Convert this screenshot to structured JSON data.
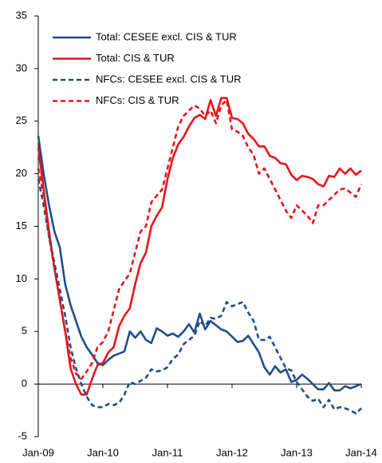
{
  "chart_data": {
    "type": "line",
    "categories": [
      "Jan-09",
      null,
      null,
      null,
      null,
      null,
      null,
      null,
      null,
      null,
      null,
      null,
      "Jan-10",
      null,
      null,
      null,
      null,
      null,
      null,
      null,
      null,
      null,
      null,
      null,
      "Jan-11",
      null,
      null,
      null,
      null,
      null,
      null,
      null,
      null,
      null,
      null,
      null,
      "Jan-12",
      null,
      null,
      null,
      null,
      null,
      null,
      null,
      null,
      null,
      null,
      null,
      "Jan-13",
      null,
      null,
      null,
      null,
      null,
      null,
      null,
      null,
      null,
      null,
      null,
      "Jan-14"
    ],
    "series": [
      {
        "name": "Total: CESEE excl. CIS & TUR",
        "color": "#1f4e8c",
        "line_style": "solid",
        "values": [
          23.6,
          20,
          17,
          14.5,
          13,
          9.5,
          7.5,
          6,
          4.5,
          3.5,
          2.8,
          2,
          1.8,
          2.3,
          2.7,
          2.9,
          3.1,
          5,
          4.4,
          5,
          4.2,
          3.9,
          5.3,
          5,
          4.6,
          4.8,
          4.5,
          5,
          5.7,
          4.9,
          6.7,
          5.2,
          6,
          5.6,
          5.2,
          5,
          4.5,
          4,
          4.1,
          4.6,
          3.8,
          3,
          1.6,
          0.9,
          1.7,
          1.1,
          1.4,
          0.2,
          0.4,
          0.9,
          0.5,
          0,
          -0.5,
          -0.5,
          0.1,
          -0.6,
          -0.6,
          -0.2,
          -0.4,
          -0.2,
          0
        ]
      },
      {
        "name": "Total: CIS & TUR",
        "color": "#e8141b",
        "line_style": "solid",
        "values": [
          22.5,
          18.5,
          14.5,
          11,
          8,
          5,
          1.5,
          0,
          -1,
          -1,
          0.5,
          1.8,
          2,
          3,
          3.5,
          5.5,
          6.5,
          7.2,
          9.5,
          11.5,
          12.5,
          15,
          16,
          16.8,
          19.5,
          21.5,
          22.8,
          23.5,
          24.5,
          25.3,
          25.6,
          25.2,
          27,
          25.5,
          27.2,
          27.2,
          25.3,
          25.2,
          24.8,
          23.8,
          23.3,
          22.6,
          22.6,
          21.7,
          21.5,
          21,
          20.9,
          19.9,
          19.4,
          19.8,
          19.7,
          19.5,
          19,
          18.8,
          19.8,
          19.7,
          20.5,
          20,
          20.5,
          19.9,
          20.3
        ]
      },
      {
        "name": "NFCs: CESEE excl. CIS & TUR",
        "color": "#1f4e8c",
        "line_style": "dashed",
        "values": [
          19.5,
          17,
          14,
          11.5,
          9,
          6.5,
          3.5,
          1.5,
          0,
          -1.2,
          -2,
          -2.2,
          -2.2,
          -1.9,
          -2,
          -1.8,
          -1,
          0.2,
          0,
          0.3,
          0.6,
          1.4,
          1.2,
          1.3,
          1.6,
          2.4,
          2.8,
          3.8,
          4.2,
          4.6,
          6,
          5.5,
          6.3,
          6.2,
          6.5,
          7.8,
          7.4,
          7.6,
          7.8,
          6.8,
          6,
          4.2,
          4.2,
          4.5,
          3.5,
          2.5,
          1.5,
          1.3,
          0.2,
          -0.5,
          -1.2,
          -1.6,
          -1.4,
          -2.2,
          -1.5,
          -2.4,
          -2.2,
          -2.3,
          -2.5,
          -2.8,
          -2.3
        ]
      },
      {
        "name": "NFCs: CIS & TUR",
        "color": "#e8141b",
        "line_style": "dashed",
        "values": [
          20.5,
          18,
          14,
          11,
          8,
          5,
          2.5,
          1,
          0.5,
          1.2,
          2,
          3.5,
          4,
          5,
          7,
          9,
          9.8,
          10.5,
          12.5,
          14.5,
          15,
          17.3,
          17.9,
          18.5,
          20.5,
          22.5,
          24.5,
          25.5,
          26,
          26.5,
          26.2,
          25.5,
          26,
          24.8,
          26.5,
          27,
          24.2,
          24,
          23.6,
          22.5,
          21.8,
          20,
          20.5,
          19.5,
          18.5,
          17.5,
          16.5,
          15.8,
          17,
          16.5,
          16,
          15.3,
          17,
          17,
          17.5,
          18,
          18.5,
          18.6,
          18.2,
          17.8,
          19
        ]
      }
    ],
    "ylim": [
      -5,
      35
    ],
    "yticks": [
      -5,
      0,
      5,
      10,
      15,
      20,
      25,
      30,
      35
    ],
    "legend": "upper left",
    "grid": false
  }
}
